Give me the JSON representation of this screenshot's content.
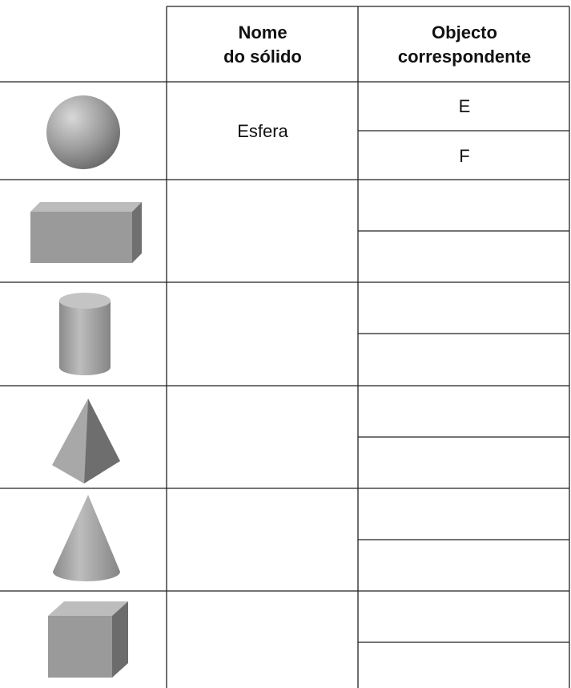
{
  "table": {
    "header": {
      "solid_name": [
        "Nome",
        "do sólido"
      ],
      "object": [
        "Objecto",
        "correspondente"
      ]
    },
    "rows": [
      {
        "name": "Esfera",
        "objects": [
          "E",
          "F"
        ]
      }
    ]
  }
}
